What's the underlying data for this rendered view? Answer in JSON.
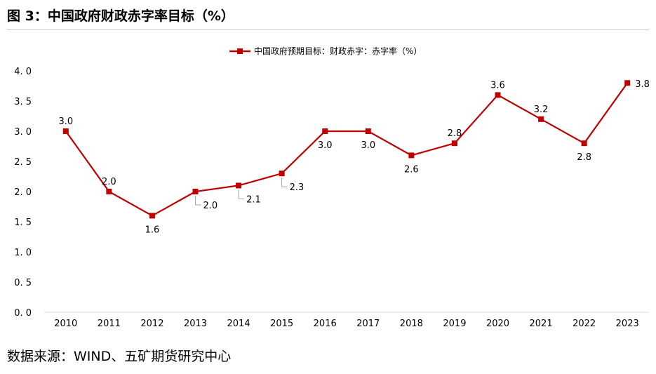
{
  "page": {
    "figure_title": "图 3：中国政府财政赤字率目标（%）",
    "source_note": "数据来源：WIND、五矿期货研究中心"
  },
  "chart_data": {
    "type": "line",
    "title": "",
    "xlabel": "",
    "ylabel": "",
    "categories": [
      "2010",
      "2011",
      "2012",
      "2013",
      "2014",
      "2015",
      "2016",
      "2017",
      "2018",
      "2019",
      "2020",
      "2021",
      "2022",
      "2023"
    ],
    "series": [
      {
        "name": "中国政府预期目标：财政赤字：赤字率（%）",
        "values": [
          3.0,
          2.0,
          1.6,
          2.0,
          2.1,
          2.3,
          3.0,
          3.0,
          2.6,
          2.8,
          3.6,
          3.2,
          2.8,
          3.8
        ],
        "color": "#c00000"
      }
    ],
    "data_labels": [
      "3.0",
      "2.0",
      "1.6",
      "2.0",
      "2.1",
      "2.3",
      "3.0",
      "3.0",
      "2.6",
      "2.8",
      "3.6",
      "3.2",
      "2.8",
      "3.8"
    ],
    "ylim": [
      0,
      4.0
    ],
    "yticks": [
      "0. 0",
      "0. 5",
      "1. 0",
      "1. 5",
      "2. 0",
      "2. 5",
      "3. 0",
      "3. 5",
      "4. 0"
    ],
    "grid": false,
    "legend_position": "top-center",
    "marker": "square"
  }
}
